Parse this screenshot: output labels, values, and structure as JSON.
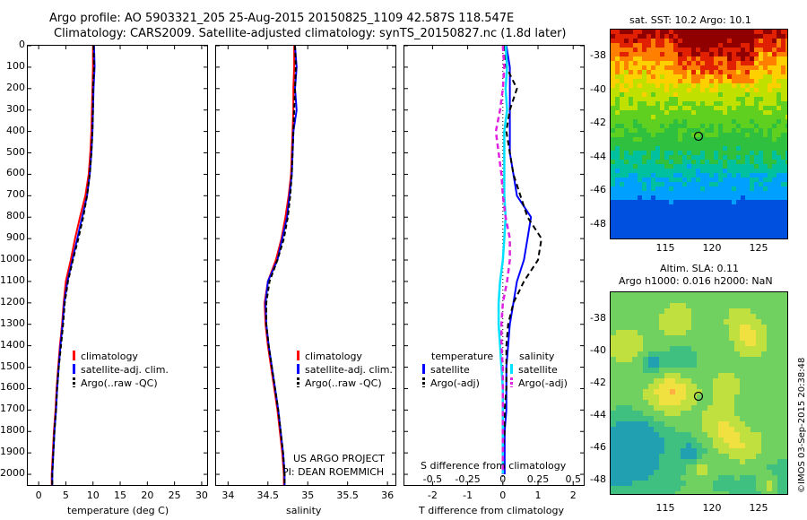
{
  "header": {
    "line1": "Argo profile: AO 5903321_205 25-Aug-2015 20150825_1109 42.587S 118.547E",
    "line2": "Climatology: CARS2009. Satellite-adjusted climatology: synTS_20150827.nc (1.8d later)"
  },
  "depth_ticks": [
    "0",
    "100",
    "200",
    "300",
    "400",
    "500",
    "600",
    "700",
    "800",
    "900",
    "1000",
    "1100",
    "1200",
    "1300",
    "1400",
    "1500",
    "1600",
    "1700",
    "1800",
    "1900",
    "2000"
  ],
  "panels": {
    "temperature": {
      "xlabel": "temperature (deg C)",
      "xticks": [
        "0",
        "5",
        "10",
        "15",
        "20",
        "25",
        "30"
      ],
      "legend": [
        "climatology",
        "satellite-adj. clim.",
        "Argo(..raw -QC)"
      ]
    },
    "salinity": {
      "xlabel": "salinity",
      "xticks": [
        "34",
        "34.5",
        "35",
        "35.5",
        "36"
      ],
      "legend": [
        "climatology",
        "satellite-adj. clim.",
        "Argo(..raw -QC)"
      ],
      "credit1": "US ARGO PROJECT",
      "credit2": "PI: DEAN ROEMMICH"
    },
    "difference": {
      "xlabel": "T difference from climatology",
      "xlabel2": "S difference from climatology",
      "xticks": [
        "-2",
        "-1",
        "0",
        "1",
        "2"
      ],
      "xticks2": [
        "-0.5",
        "-0.25",
        "0",
        "0.25",
        "0.5"
      ],
      "legend_temp_title": "temperature",
      "legend_sal_title": "salinity",
      "legend_temp": [
        "satellite",
        "Argo(-adj)"
      ],
      "legend_sal": [
        "satellite",
        "Argo(-adj)"
      ]
    },
    "sst_map": {
      "title": "sat. SST: 10.2 Argo: 10.1",
      "yticks": [
        "-38",
        "-40",
        "-42",
        "-44",
        "-46",
        "-48"
      ],
      "xticks": [
        "115",
        "120",
        "125"
      ]
    },
    "sla_map": {
      "title1": "Altim. SLA: 0.11",
      "title2": "Argo h1000: 0.016 h2000: NaN",
      "yticks": [
        "-38",
        "-40",
        "-42",
        "-44",
        "-46",
        "-48"
      ],
      "xticks": [
        "115",
        "120",
        "125"
      ],
      "credit": "©IMOS 03-Sep-2015 20:38:48"
    }
  },
  "colors": {
    "climatology": "#ff0000",
    "satellite": "#0000ff",
    "argo": "#000000",
    "sal_satellite": "#00e0ff",
    "sal_argo": "#e020e0"
  },
  "chart_data": [
    {
      "type": "line",
      "panel": "temperature",
      "xlabel": "temperature (deg C)",
      "ylabel": "",
      "xlim": [
        -2,
        31
      ],
      "ylim": [
        2050,
        0
      ],
      "y": [
        0,
        100,
        200,
        300,
        400,
        500,
        600,
        700,
        800,
        900,
        1000,
        1100,
        1200,
        1300,
        1400,
        1500,
        1600,
        1700,
        1800,
        1900,
        2000,
        2050
      ],
      "series": [
        {
          "name": "climatology",
          "values": [
            10.0,
            10.0,
            9.9,
            9.8,
            9.7,
            9.5,
            9.2,
            8.6,
            7.6,
            6.7,
            5.9,
            5.0,
            4.6,
            4.3,
            3.9,
            3.6,
            3.3,
            3.1,
            2.8,
            2.6,
            2.4,
            2.4
          ]
        },
        {
          "name": "satellite-adj. clim.",
          "values": [
            10.2,
            10.3,
            10.1,
            10.0,
            9.9,
            9.7,
            9.4,
            8.9,
            8.0,
            7.1,
            6.2,
            5.3,
            4.7,
            4.4,
            4.0,
            3.7,
            3.4,
            3.2,
            2.9,
            2.7,
            2.5,
            2.5
          ]
        },
        {
          "name": "Argo(..raw -QC)",
          "values": [
            10.1,
            10.2,
            10.0,
            10.0,
            9.9,
            9.7,
            9.4,
            8.9,
            8.2,
            7.3,
            6.3,
            5.4,
            4.8,
            4.5,
            4.1,
            3.7,
            3.4,
            3.2,
            2.9,
            2.7,
            2.5,
            2.5
          ]
        }
      ]
    },
    {
      "type": "line",
      "panel": "salinity",
      "xlabel": "salinity",
      "xlim": [
        33.85,
        36.1
      ],
      "ylim": [
        2050,
        0
      ],
      "y": [
        0,
        100,
        200,
        300,
        400,
        500,
        600,
        700,
        800,
        900,
        1000,
        1100,
        1200,
        1300,
        1400,
        1500,
        1600,
        1700,
        1800,
        1900,
        2000,
        2050
      ],
      "series": [
        {
          "name": "climatology",
          "values": [
            34.83,
            34.83,
            34.82,
            34.82,
            34.81,
            34.8,
            34.79,
            34.76,
            34.72,
            34.67,
            34.6,
            34.5,
            34.46,
            34.47,
            34.5,
            34.54,
            34.58,
            34.62,
            34.65,
            34.68,
            34.7,
            34.7
          ]
        },
        {
          "name": "satellite-adj. clim.",
          "values": [
            34.84,
            34.86,
            34.84,
            34.86,
            34.82,
            34.81,
            34.8,
            34.77,
            34.74,
            34.68,
            34.62,
            34.5,
            34.47,
            34.48,
            34.51,
            34.55,
            34.59,
            34.63,
            34.66,
            34.69,
            34.71,
            34.71
          ]
        },
        {
          "name": "Argo(..raw -QC)",
          "values": [
            34.84,
            34.85,
            34.84,
            34.83,
            34.82,
            34.81,
            34.8,
            34.78,
            34.75,
            34.7,
            34.62,
            34.52,
            34.48,
            34.48,
            34.51,
            34.55,
            34.59,
            34.63,
            34.66,
            34.69,
            34.71,
            34.71
          ]
        }
      ]
    },
    {
      "type": "line",
      "panel": "difference",
      "xlabel": "T difference from climatology",
      "xlim": [
        -2.8,
        2.3
      ],
      "ylim": [
        2050,
        0
      ],
      "y": [
        0,
        100,
        200,
        300,
        400,
        500,
        600,
        700,
        800,
        900,
        1000,
        1100,
        1200,
        1300,
        1400,
        1500,
        1600,
        1700,
        1800,
        1900,
        2000
      ],
      "series": [
        {
          "name": "temperature satellite",
          "values": [
            0.1,
            0.2,
            0.2,
            0.2,
            0.2,
            0.2,
            0.3,
            0.4,
            0.8,
            0.7,
            0.6,
            0.4,
            0.3,
            0.2,
            0.15,
            0.1,
            0.1,
            0.1,
            0.05,
            0.05,
            0.05
          ]
        },
        {
          "name": "temperature Argo(-adj)",
          "values": [
            0.05,
            0.1,
            0.4,
            0.2,
            0.1,
            0.2,
            0.3,
            0.5,
            0.7,
            1.1,
            1.0,
            0.6,
            0.3,
            0.15,
            0.1,
            0.1,
            0.1,
            0.05,
            0.05,
            0.0,
            0.0
          ]
        },
        {
          "name": "salinity satellite",
          "values": [
            0.02,
            0.03,
            0.02,
            0.03,
            0.01,
            0.01,
            0.01,
            0.01,
            0.02,
            0.01,
            0.0,
            -0.02,
            -0.03,
            -0.03,
            -0.02,
            -0.01,
            0.0,
            0.0,
            0.0,
            0.0,
            0.0
          ]
        },
        {
          "name": "salinity Argo(-adj)",
          "values": [
            0.0,
            0.01,
            0.0,
            -0.02,
            -0.05,
            -0.03,
            -0.01,
            0.0,
            0.02,
            0.05,
            0.05,
            0.03,
            0.0,
            -0.01,
            -0.01,
            0.0,
            0.0,
            0.0,
            0.0,
            0.0,
            0.0
          ]
        }
      ]
    }
  ]
}
